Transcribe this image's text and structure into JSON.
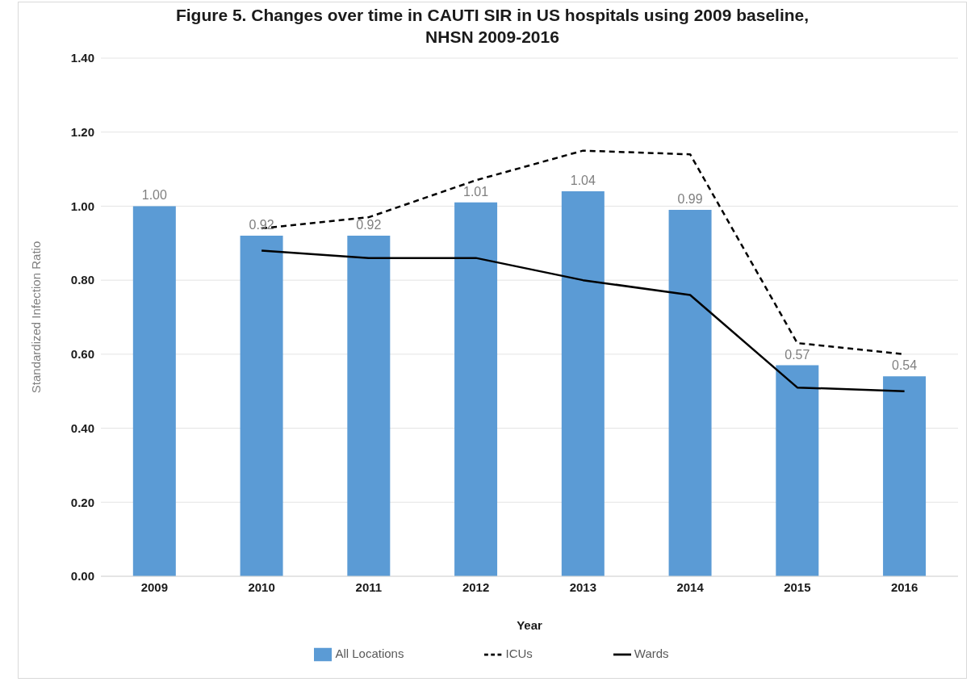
{
  "chart_data": {
    "type": "bar",
    "title": "Figure 5. Changes over time in CAUTI SIR in US hospitals using 2009 baseline,\nNHSN 2009-2016",
    "xlabel": "Year",
    "ylabel": "Standardized Infection Ratio",
    "categories": [
      "2009",
      "2010",
      "2011",
      "2012",
      "2013",
      "2014",
      "2015",
      "2016"
    ],
    "series": [
      {
        "name": "All Locations",
        "color": "#5b9bd5",
        "values": [
          1.0,
          0.92,
          0.92,
          1.01,
          1.04,
          0.99,
          0.57,
          0.54
        ],
        "value_labels": [
          "1.00",
          "0.92",
          "0.92",
          "1.01",
          "1.04",
          "0.99",
          "0.57",
          "0.54"
        ]
      },
      {
        "name": "ICUs",
        "type": "line",
        "color": "#000000",
        "line_style": "dashed",
        "values": [
          null,
          0.94,
          0.97,
          1.07,
          1.15,
          1.14,
          0.63,
          0.6
        ]
      },
      {
        "name": "Wards",
        "type": "line",
        "color": "#000000",
        "line_style": "solid",
        "values": [
          null,
          0.88,
          0.86,
          0.86,
          0.8,
          0.76,
          0.51,
          0.5
        ]
      }
    ],
    "ylim": [
      0,
      1.4
    ],
    "yticks": [
      {
        "value": 0,
        "label": "0.00"
      },
      {
        "value": 0.2,
        "label": "0.20"
      },
      {
        "value": 0.4,
        "label": "0.40"
      },
      {
        "value": 0.6,
        "label": "0.60"
      },
      {
        "value": 0.8,
        "label": "0.80"
      },
      {
        "value": 1,
        "label": "1.00"
      },
      {
        "value": 1.2,
        "label": "1.20"
      },
      {
        "value": 1.4,
        "label": "1.40"
      }
    ],
    "grid": "y",
    "legend": "bottom",
    "marker": "none"
  }
}
